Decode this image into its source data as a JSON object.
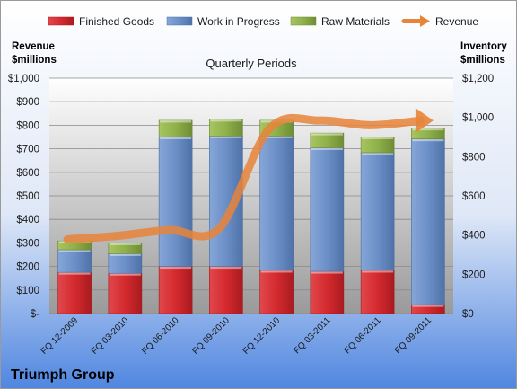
{
  "chart_data": {
    "type": "bar",
    "stacked": true,
    "title": "Quarterly Periods",
    "company": "Triumph Group",
    "categories": [
      "FQ 12-2009",
      "FQ 03-2010",
      "FQ 06-2010",
      "FQ 09-2010",
      "FQ 12-2010",
      "FQ 03-2011",
      "FQ 06-2011",
      "FQ 09-2011"
    ],
    "left_axis": {
      "label": "Revenue\n$millions",
      "ylim": [
        0,
        1000
      ],
      "ticks": [
        0,
        100,
        200,
        300,
        400,
        500,
        600,
        700,
        800,
        900,
        1000
      ],
      "tick_labels": [
        "$-",
        "$100",
        "$200",
        "$300",
        "$400",
        "$500",
        "$600",
        "$700",
        "$800",
        "$900",
        "$1,000"
      ]
    },
    "right_axis": {
      "label": "Inventory\n$millions",
      "ylim": [
        0,
        1200
      ],
      "ticks": [
        0,
        200,
        400,
        600,
        800,
        1000,
        1200
      ],
      "tick_labels": [
        "$0",
        "$200",
        "$400",
        "$600",
        "$800",
        "$1,000",
        "$1,200"
      ]
    },
    "series": [
      {
        "name": "Finished Goods",
        "axis": "right",
        "color": "#d42a2f",
        "values": [
          210,
          205,
          240,
          240,
          220,
          215,
          220,
          45
        ]
      },
      {
        "name": "Work in Progress",
        "axis": "right",
        "color": "#6b8fc7",
        "values": [
          115,
          100,
          660,
          665,
          685,
          630,
          600,
          845
        ]
      },
      {
        "name": "Raw Materials",
        "axis": "right",
        "color": "#8fb04a",
        "values": [
          45,
          55,
          85,
          85,
          80,
          75,
          80,
          55
        ]
      },
      {
        "name": "Revenue",
        "axis": "left",
        "type": "line",
        "color": "#e8843a",
        "values": [
          315,
          330,
          355,
          360,
          785,
          820,
          800,
          820
        ]
      }
    ],
    "grid": true,
    "legend": "top"
  }
}
